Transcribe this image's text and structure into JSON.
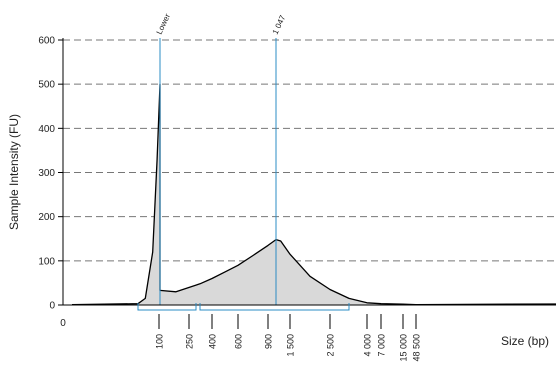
{
  "chart_data": {
    "type": "area",
    "title": "",
    "ylabel": "Sample Intensity (FU)",
    "xlabel": "Size (bp)",
    "ylim": [
      0,
      600
    ],
    "y_ticks": [
      0,
      100,
      200,
      300,
      400,
      500,
      600
    ],
    "x_origin_label": "0",
    "grid": "horizontal dashed",
    "fill_color": "#d9d9d9",
    "line_color": "#000000",
    "marker_color": "#2b8cc4",
    "x_tick_labels": [
      "100",
      "250",
      "400",
      "600",
      "900",
      "1 500",
      "2 500",
      "4 000",
      "7 000",
      "15 000",
      "48 500"
    ],
    "markers": [
      {
        "label": "Lower",
        "size_bp": 35,
        "intensity": 500
      },
      {
        "label": "1 047",
        "size_bp": 1047,
        "intensity": 148
      }
    ],
    "regions": [
      {
        "from_bp": 20,
        "to_bp": 280
      },
      {
        "from_bp": 330,
        "to_bp": 3200
      }
    ],
    "series": [
      {
        "size_bp": [
          10,
          20,
          25,
          30,
          33,
          35,
          37,
          40,
          45,
          55,
          70,
          100,
          180,
          280,
          330,
          400,
          500,
          600,
          750,
          900,
          1047,
          1200,
          1500,
          2000,
          2500,
          3200,
          4000,
          7000,
          15000,
          48500
        ],
        "intensity": [
          1,
          3,
          15,
          120,
          330,
          500,
          420,
          230,
          90,
          40,
          36,
          33,
          30,
          45,
          48,
          60,
          75,
          90,
          112,
          135,
          148,
          145,
          115,
          65,
          35,
          15,
          5,
          3,
          2,
          1
        ]
      }
    ]
  }
}
